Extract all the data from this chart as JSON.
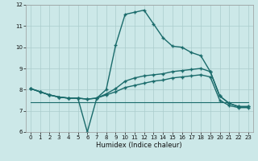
{
  "xlabel": "Humidex (Indice chaleur)",
  "xlim": [
    -0.5,
    23.5
  ],
  "ylim": [
    6,
    12
  ],
  "xticks": [
    0,
    1,
    2,
    3,
    4,
    5,
    6,
    7,
    8,
    9,
    10,
    11,
    12,
    13,
    14,
    15,
    16,
    17,
    18,
    19,
    20,
    21,
    22,
    23
  ],
  "yticks": [
    6,
    7,
    8,
    9,
    10,
    11,
    12
  ],
  "background_color": "#cce8e8",
  "grid_color": "#aacccc",
  "line_color": "#1a6b6b",
  "series": [
    {
      "x": [
        0,
        1,
        2,
        3,
        4,
        5,
        6,
        7,
        8,
        9,
        10,
        11,
        12,
        13,
        14,
        15,
        16,
        17,
        18,
        19,
        20,
        21,
        22,
        23
      ],
      "y": [
        8.05,
        7.9,
        7.75,
        7.65,
        7.6,
        7.6,
        6.0,
        7.6,
        8.0,
        10.1,
        11.55,
        11.65,
        11.75,
        11.1,
        10.45,
        10.05,
        10.0,
        9.75,
        9.6,
        8.85,
        7.7,
        7.35,
        7.2,
        7.2
      ],
      "marker": "+",
      "markersize": 3.5,
      "linewidth": 1.0,
      "has_markers": true
    },
    {
      "x": [
        0,
        1,
        2,
        3,
        4,
        5,
        6,
        7,
        8,
        9,
        10,
        11,
        12,
        13,
        14,
        15,
        16,
        17,
        18,
        19,
        20,
        21,
        22,
        23
      ],
      "y": [
        8.05,
        7.9,
        7.75,
        7.65,
        7.6,
        7.6,
        7.55,
        7.6,
        7.8,
        8.05,
        8.4,
        8.55,
        8.65,
        8.7,
        8.75,
        8.85,
        8.9,
        8.95,
        9.0,
        8.85,
        7.7,
        7.35,
        7.2,
        7.2
      ],
      "marker": "+",
      "markersize": 3.5,
      "linewidth": 1.0,
      "has_markers": true
    },
    {
      "x": [
        0,
        1,
        2,
        3,
        4,
        5,
        6,
        7,
        8,
        9,
        10,
        11,
        12,
        13,
        14,
        15,
        16,
        17,
        18,
        19,
        20,
        21,
        22,
        23
      ],
      "y": [
        8.05,
        7.9,
        7.75,
        7.65,
        7.6,
        7.6,
        7.55,
        7.6,
        7.75,
        7.9,
        8.1,
        8.2,
        8.3,
        8.4,
        8.45,
        8.55,
        8.6,
        8.65,
        8.7,
        8.6,
        7.5,
        7.25,
        7.15,
        7.15
      ],
      "marker": "+",
      "markersize": 3.5,
      "linewidth": 1.0,
      "has_markers": true
    },
    {
      "x": [
        0,
        1,
        2,
        3,
        4,
        5,
        6,
        7,
        8,
        9,
        10,
        11,
        12,
        13,
        14,
        15,
        16,
        17,
        18,
        19,
        20,
        21,
        22,
        23
      ],
      "y": [
        7.4,
        7.4,
        7.4,
        7.4,
        7.4,
        7.4,
        7.4,
        7.4,
        7.4,
        7.4,
        7.4,
        7.4,
        7.4,
        7.4,
        7.4,
        7.4,
        7.4,
        7.4,
        7.4,
        7.4,
        7.4,
        7.4,
        7.4,
        7.4
      ],
      "marker": null,
      "markersize": 0,
      "linewidth": 0.8,
      "has_markers": false
    }
  ]
}
